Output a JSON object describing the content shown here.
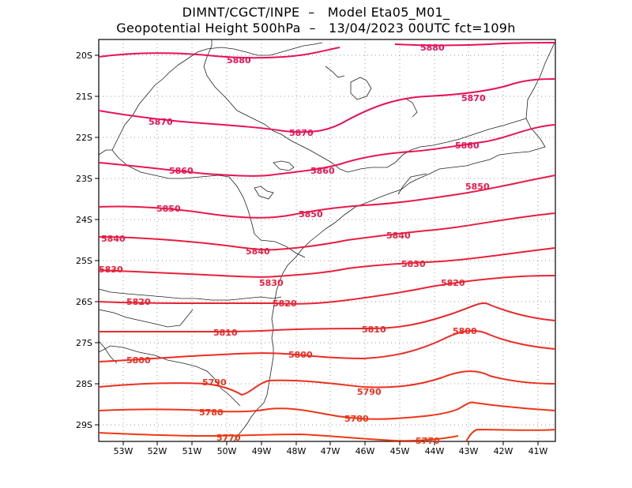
{
  "header": {
    "line1": "DIMNT/CGCT/INPE  –   Model Eta05_M01_",
    "line2": "Geopotential Height 500hPa  –   13/04/2023 00UTC fct=109h"
  },
  "map": {
    "lon_range": [
      -53.7,
      -40.5
    ],
    "lat_range": [
      -29.5,
      -19.6
    ],
    "lon_ticks": [
      "53W",
      "52W",
      "51W",
      "50W",
      "49W",
      "48W",
      "47W",
      "46W",
      "45W",
      "44W",
      "43W",
      "42W",
      "41W"
    ],
    "lat_ticks": [
      "20S",
      "21S",
      "22S",
      "23S",
      "24S",
      "25S",
      "26S",
      "27S",
      "28S",
      "29S"
    ]
  },
  "contours": [
    {
      "value": "5880",
      "labels": [
        "5880",
        "5880"
      ],
      "color": "#e8105a"
    },
    {
      "value": "5870",
      "labels": [
        "5870",
        "5870",
        "5870"
      ],
      "color": "#e8105a"
    },
    {
      "value": "5860",
      "labels": [
        "5860",
        "5860",
        "5860"
      ],
      "color": "#e81452"
    },
    {
      "value": "5850",
      "labels": [
        "5850",
        "5850",
        "5850"
      ],
      "color": "#e8184a"
    },
    {
      "value": "5840",
      "labels": [
        "5840",
        "5840",
        "5840"
      ],
      "color": "#e81c42"
    },
    {
      "value": "5830",
      "labels": [
        "5830",
        "5830",
        "5830"
      ],
      "color": "#e8203a"
    },
    {
      "value": "5820",
      "labels": [
        "5820",
        "5820",
        "5820"
      ],
      "color": "#e82434"
    },
    {
      "value": "5810",
      "labels": [
        "5810",
        "5810"
      ],
      "color": "#e8282c"
    },
    {
      "value": "5800",
      "labels": [
        "5800",
        "5800",
        "5800"
      ],
      "color": "#ec2c24"
    },
    {
      "value": "5790",
      "labels": [
        "5790",
        "5790"
      ],
      "color": "#ec301e"
    },
    {
      "value": "5780",
      "labels": [
        "5780",
        "5780"
      ],
      "color": "#ee3418"
    },
    {
      "value": "5770",
      "labels": [
        "5770",
        "5770"
      ],
      "color": "#f03812"
    }
  ]
}
